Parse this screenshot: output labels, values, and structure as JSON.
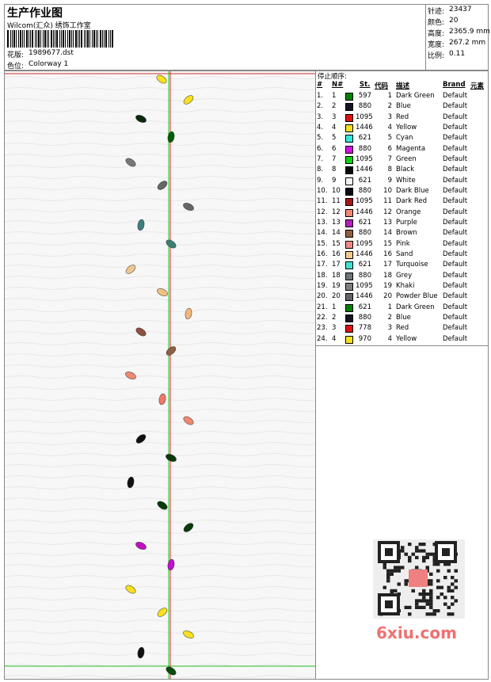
{
  "header": {
    "title": "生产作业图",
    "company": "Wilcom(汇众) 绣饰工作室",
    "design_label": "花版:",
    "design": "1989677.dst",
    "colorway_label": "色位:",
    "colorway": "Colorway 1"
  },
  "stats": [
    {
      "label": "针迹:",
      "value": "23437"
    },
    {
      "label": "颜色:",
      "value": "20"
    },
    {
      "label": "高度:",
      "value": "2365.9 mm"
    },
    {
      "label": "宽度:",
      "value": "267.2 mm"
    },
    {
      "label": "比例:",
      "value": "0.11"
    }
  ],
  "table": {
    "title": "停止顺序:",
    "columns": [
      "#",
      "N#",
      "St.",
      "代码",
      "描述",
      "Brand",
      "元素"
    ],
    "rows": [
      [
        "1.",
        "1",
        "#008000",
        597,
        "1",
        "Dark Green",
        "Default"
      ],
      [
        "2.",
        "2",
        "#141424",
        880,
        "2",
        "Blue",
        "Default"
      ],
      [
        "3.",
        "3",
        "#e01010",
        1095,
        "3",
        "Red",
        "Default"
      ],
      [
        "4.",
        "4",
        "#f8e020",
        1446,
        "4",
        "Yellow",
        "Default"
      ],
      [
        "5.",
        "5",
        "#30e8e0",
        621,
        "5",
        "Cyan",
        "Default"
      ],
      [
        "6.",
        "6",
        "#d010e0",
        880,
        "6",
        "Magenta",
        "Default"
      ],
      [
        "7.",
        "7",
        "#10d010",
        1095,
        "7",
        "Green",
        "Default"
      ],
      [
        "8.",
        "8",
        "#0a0a0a",
        1446,
        "8",
        "Black",
        "Default"
      ],
      [
        "9.",
        "9",
        "#f4f4f4",
        621,
        "9",
        "White",
        "Default"
      ],
      [
        "10.",
        "10",
        "#0a0a14",
        880,
        "10",
        "Dark Blue",
        "Default"
      ],
      [
        "11.",
        "11",
        "#a01818",
        1095,
        "11",
        "Dark Red",
        "Default"
      ],
      [
        "12.",
        "12",
        "#f08870",
        1446,
        "12",
        "Orange",
        "Default"
      ],
      [
        "13.",
        "13",
        "#b020c0",
        621,
        "13",
        "Purple",
        "Default"
      ],
      [
        "14.",
        "14",
        "#906040",
        880,
        "14",
        "Brown",
        "Default"
      ],
      [
        "15.",
        "15",
        "#f08888",
        1095,
        "15",
        "Pink",
        "Default"
      ],
      [
        "16.",
        "16",
        "#f0c890",
        1446,
        "16",
        "Sand",
        "Default"
      ],
      [
        "17.",
        "17",
        "#40e0d0",
        621,
        "17",
        "Turquoise",
        "Default"
      ],
      [
        "18.",
        "18",
        "#707478",
        880,
        "18",
        "Grey",
        "Default"
      ],
      [
        "19.",
        "19",
        "#808080",
        1095,
        "19",
        "Khaki",
        "Default"
      ],
      [
        "20.",
        "20",
        "#606468",
        1446,
        "20",
        "Powder Blue",
        "Default"
      ],
      [
        "21.",
        "1",
        "#008000",
        621,
        "1",
        "Dark Green",
        "Default"
      ],
      [
        "22.",
        "2",
        "#141424",
        880,
        "2",
        "Blue",
        "Default"
      ],
      [
        "23.",
        "3",
        "#e01010",
        778,
        "3",
        "Red",
        "Default"
      ],
      [
        "24.",
        "4",
        "#f8e020",
        970,
        "4",
        "Yellow",
        "Default"
      ]
    ]
  },
  "watermark": "6xiu.com"
}
